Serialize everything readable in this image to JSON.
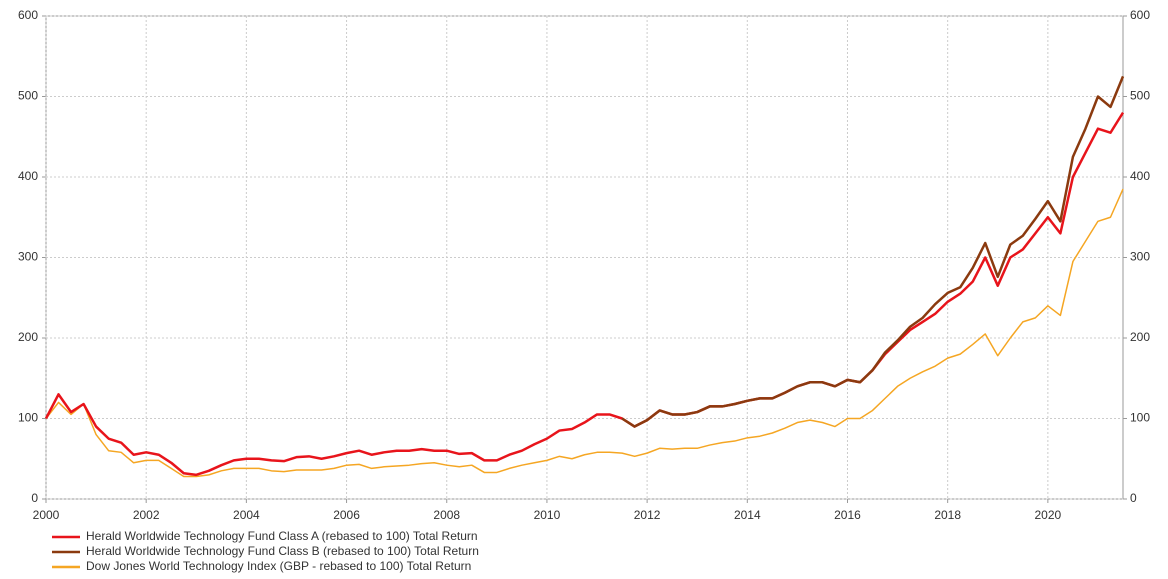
{
  "chart_data": {
    "type": "line",
    "x": [
      2000,
      2000.25,
      2000.5,
      2000.75,
      2001,
      2001.25,
      2001.5,
      2001.75,
      2002,
      2002.25,
      2002.5,
      2002.75,
      2003,
      2003.25,
      2003.5,
      2003.75,
      2004,
      2004.25,
      2004.5,
      2004.75,
      2005,
      2005.25,
      2005.5,
      2005.75,
      2006,
      2006.25,
      2006.5,
      2006.75,
      2007,
      2007.25,
      2007.5,
      2007.75,
      2008,
      2008.25,
      2008.5,
      2008.75,
      2009,
      2009.25,
      2009.5,
      2009.75,
      2010,
      2010.25,
      2010.5,
      2010.75,
      2011,
      2011.25,
      2011.5,
      2011.75,
      2012,
      2012.25,
      2012.5,
      2012.75,
      2013,
      2013.25,
      2013.5,
      2013.75,
      2014,
      2014.25,
      2014.5,
      2014.75,
      2015,
      2015.25,
      2015.5,
      2015.75,
      2016,
      2016.25,
      2016.5,
      2016.75,
      2017,
      2017.25,
      2017.5,
      2017.75,
      2018,
      2018.25,
      2018.5,
      2018.75,
      2019,
      2019.25,
      2019.5,
      2019.75,
      2020,
      2020.25,
      2020.5,
      2020.75,
      2021,
      2021.25,
      2021.5
    ],
    "series": [
      {
        "name": "Dow Jones World Technology Index (GBP - rebased to 100) Total Return",
        "color": "#f5a623",
        "values": [
          100,
          120,
          105,
          118,
          80,
          60,
          58,
          45,
          48,
          48,
          38,
          28,
          28,
          30,
          35,
          38,
          38,
          38,
          35,
          34,
          36,
          36,
          36,
          38,
          42,
          43,
          38,
          40,
          41,
          42,
          44,
          45,
          42,
          40,
          42,
          33,
          33,
          38,
          42,
          45,
          48,
          53,
          50,
          55,
          58,
          58,
          57,
          53,
          57,
          63,
          62,
          63,
          63,
          67,
          70,
          72,
          76,
          78,
          82,
          88,
          95,
          98,
          95,
          90,
          100,
          100,
          110,
          125,
          140,
          150,
          158,
          165,
          175,
          180,
          192,
          205,
          178,
          200,
          220,
          225,
          240,
          228,
          295,
          320,
          345,
          350,
          385
        ]
      },
      {
        "name": "Herald Worldwide Technology Fund Class A (rebased to 100) Total Return",
        "color": "#e8141b",
        "values": [
          100,
          130,
          108,
          118,
          90,
          75,
          70,
          55,
          58,
          55,
          45,
          32,
          30,
          35,
          42,
          48,
          50,
          50,
          48,
          47,
          52,
          53,
          50,
          53,
          57,
          60,
          55,
          58,
          60,
          60,
          62,
          60,
          60,
          56,
          57,
          48,
          48,
          55,
          60,
          68,
          75,
          85,
          87,
          95,
          105,
          105,
          100,
          90,
          98,
          110,
          105,
          105,
          108,
          115,
          115,
          118,
          122,
          125,
          125,
          132,
          140,
          145,
          145,
          140,
          148,
          145,
          160,
          180,
          195,
          210,
          220,
          230,
          245,
          255,
          270,
          300,
          265,
          300,
          310,
          330,
          350,
          330,
          400,
          430,
          460,
          455,
          480
        ]
      },
      {
        "name": "Herald Worldwide Technology Fund Class B (rebased to 100) Total Return",
        "color": "#8b3a0f",
        "values": [
          null,
          null,
          null,
          null,
          null,
          null,
          null,
          null,
          null,
          null,
          null,
          null,
          null,
          null,
          null,
          null,
          null,
          null,
          null,
          null,
          null,
          null,
          null,
          null,
          null,
          null,
          null,
          null,
          null,
          null,
          null,
          null,
          null,
          null,
          null,
          null,
          null,
          null,
          null,
          null,
          null,
          null,
          null,
          null,
          null,
          null,
          100,
          90,
          98,
          110,
          105,
          105,
          108,
          115,
          115,
          118,
          122,
          125,
          125,
          132,
          140,
          145,
          145,
          140,
          148,
          145,
          160,
          182,
          197,
          214,
          225,
          242,
          256,
          263,
          287,
          318,
          276,
          316,
          327,
          348,
          370,
          345,
          425,
          460,
          500,
          487,
          525
        ]
      }
    ],
    "xlim": [
      2000,
      2021.5
    ],
    "xticks": [
      2000,
      2002,
      2004,
      2006,
      2008,
      2010,
      2012,
      2014,
      2016,
      2018,
      2020
    ],
    "ylim": [
      0,
      600
    ],
    "yticks": [
      0,
      100,
      200,
      300,
      400,
      500,
      600
    ],
    "y2lim": [
      0,
      600
    ],
    "y2ticks": [
      0,
      100,
      200,
      300,
      400,
      500,
      600
    ],
    "grid": true
  }
}
